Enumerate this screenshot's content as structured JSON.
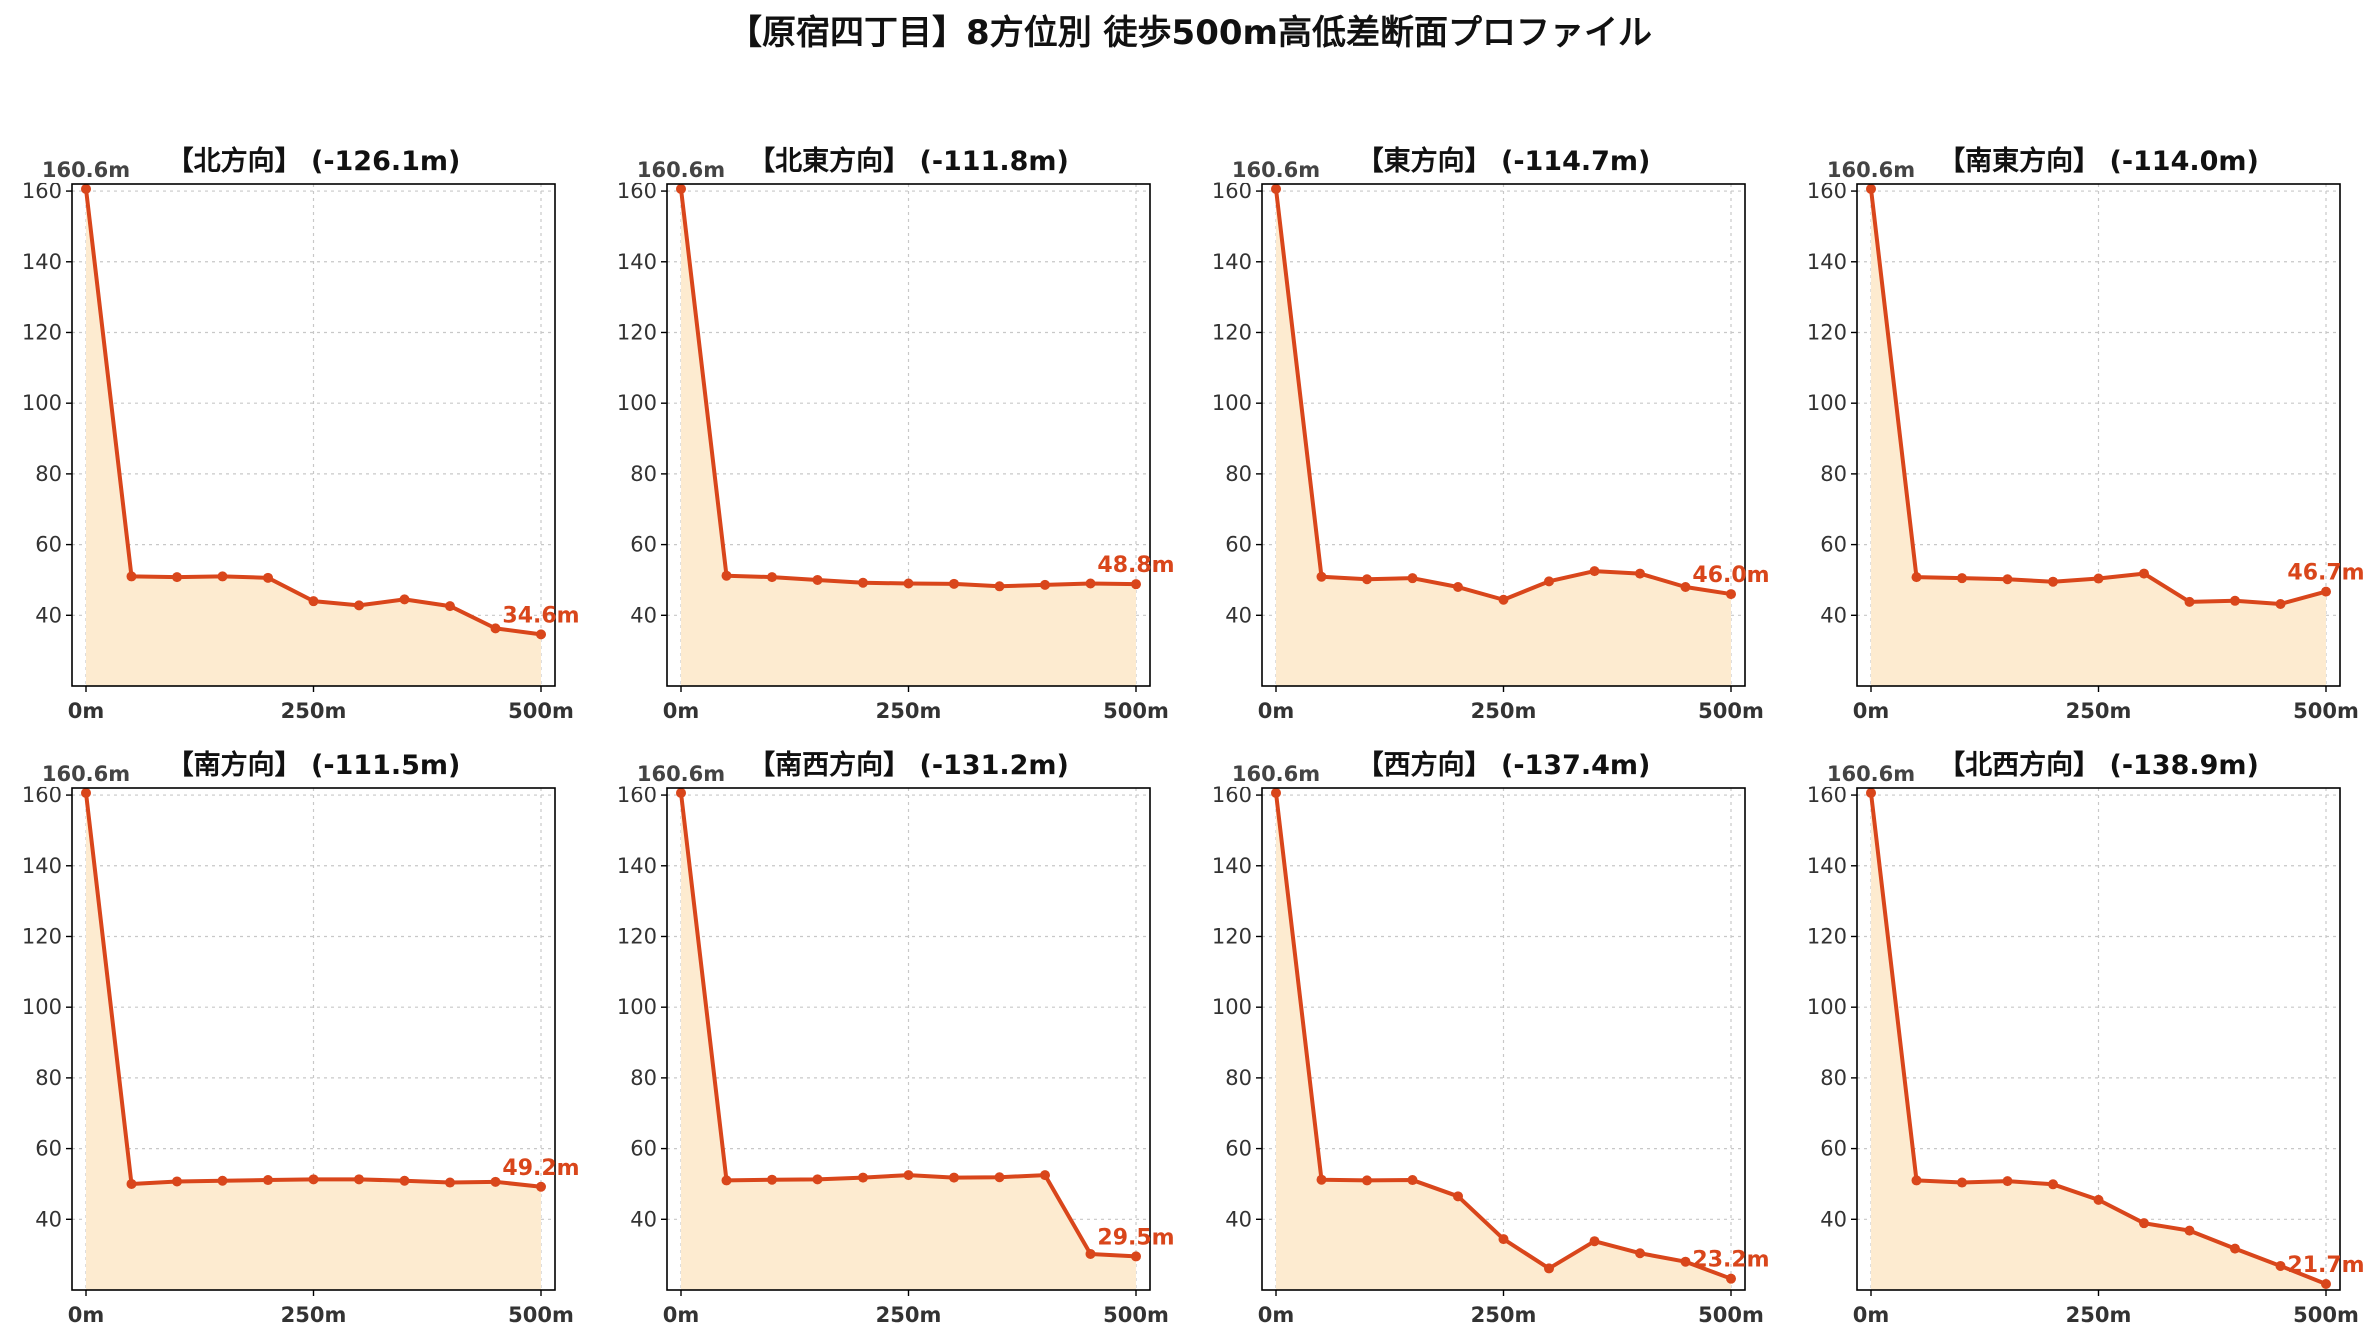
{
  "figure": {
    "title": "【原宿四丁目】8方位別 徒歩500m高低差断面プロファイル"
  },
  "colors": {
    "line": "#d9461b",
    "fill": "#fdebd0",
    "grid": "#c8c8c8",
    "end_label": "#d9461b"
  },
  "chart_data": [
    {
      "type": "area",
      "title": "【北方向】 (-126.1m)",
      "x_ticks": [
        "0m",
        "250m",
        "500m"
      ],
      "y_ticks": [
        40,
        60,
        80,
        100,
        120,
        140,
        160
      ],
      "xlim": [
        0,
        500
      ],
      "ylim": [
        20,
        162
      ],
      "grid": true,
      "x": [
        0,
        50,
        100,
        150,
        200,
        250,
        300,
        350,
        400,
        450,
        500
      ],
      "values": [
        160.6,
        51.0,
        50.8,
        51.0,
        50.6,
        44.0,
        42.8,
        44.5,
        42.6,
        36.3,
        34.6
      ],
      "start_label": "160.6m",
      "end_label": "34.6m"
    },
    {
      "type": "area",
      "title": "【北東方向】 (-111.8m)",
      "x_ticks": [
        "0m",
        "250m",
        "500m"
      ],
      "y_ticks": [
        40,
        60,
        80,
        100,
        120,
        140,
        160
      ],
      "xlim": [
        0,
        500
      ],
      "ylim": [
        20,
        162
      ],
      "grid": true,
      "x": [
        0,
        50,
        100,
        150,
        200,
        250,
        300,
        350,
        400,
        450,
        500
      ],
      "values": [
        160.6,
        51.2,
        50.8,
        50.0,
        49.2,
        49.0,
        48.9,
        48.2,
        48.6,
        49.0,
        48.8
      ],
      "start_label": "160.6m",
      "end_label": "48.8m"
    },
    {
      "type": "area",
      "title": "【東方向】 (-114.7m)",
      "x_ticks": [
        "0m",
        "250m",
        "500m"
      ],
      "y_ticks": [
        40,
        60,
        80,
        100,
        120,
        140,
        160
      ],
      "xlim": [
        0,
        500
      ],
      "ylim": [
        20,
        162
      ],
      "grid": true,
      "x": [
        0,
        50,
        100,
        150,
        200,
        250,
        300,
        350,
        400,
        450,
        500
      ],
      "values": [
        160.6,
        50.9,
        50.2,
        50.5,
        48.0,
        44.4,
        49.6,
        52.5,
        51.8,
        48.0,
        46.0
      ],
      "start_label": "160.6m",
      "end_label": "46.0m"
    },
    {
      "type": "area",
      "title": "【南東方向】 (-114.0m)",
      "x_ticks": [
        "0m",
        "250m",
        "500m"
      ],
      "y_ticks": [
        40,
        60,
        80,
        100,
        120,
        140,
        160
      ],
      "xlim": [
        0,
        500
      ],
      "ylim": [
        20,
        162
      ],
      "grid": true,
      "x": [
        0,
        50,
        100,
        150,
        200,
        250,
        300,
        350,
        400,
        450,
        500
      ],
      "values": [
        160.6,
        50.8,
        50.5,
        50.2,
        49.5,
        50.4,
        51.8,
        43.8,
        44.1,
        43.2,
        46.7
      ],
      "start_label": "160.6m",
      "end_label": "46.7m"
    },
    {
      "type": "area",
      "title": "【南方向】 (-111.5m)",
      "x_ticks": [
        "0m",
        "250m",
        "500m"
      ],
      "y_ticks": [
        40,
        60,
        80,
        100,
        120,
        140,
        160
      ],
      "xlim": [
        0,
        500
      ],
      "ylim": [
        20,
        162
      ],
      "grid": true,
      "x": [
        0,
        50,
        100,
        150,
        200,
        250,
        300,
        350,
        400,
        450,
        500
      ],
      "values": [
        160.6,
        50.0,
        50.7,
        50.9,
        51.1,
        51.3,
        51.3,
        50.9,
        50.4,
        50.6,
        49.2
      ],
      "start_label": "160.6m",
      "end_label": "49.2m"
    },
    {
      "type": "area",
      "title": "【南西方向】 (-131.2m)",
      "x_ticks": [
        "0m",
        "250m",
        "500m"
      ],
      "y_ticks": [
        40,
        60,
        80,
        100,
        120,
        140,
        160
      ],
      "xlim": [
        0,
        500
      ],
      "ylim": [
        20,
        162
      ],
      "grid": true,
      "x": [
        0,
        50,
        100,
        150,
        200,
        250,
        300,
        350,
        400,
        450,
        500
      ],
      "values": [
        160.6,
        51.0,
        51.2,
        51.3,
        51.8,
        52.5,
        51.8,
        51.9,
        52.5,
        30.2,
        29.5
      ],
      "start_label": "160.6m",
      "end_label": "29.5m"
    },
    {
      "type": "area",
      "title": "【西方向】 (-137.4m)",
      "x_ticks": [
        "0m",
        "250m",
        "500m"
      ],
      "y_ticks": [
        40,
        60,
        80,
        100,
        120,
        140,
        160
      ],
      "xlim": [
        0,
        500
      ],
      "ylim": [
        20,
        162
      ],
      "grid": true,
      "x": [
        0,
        50,
        100,
        150,
        200,
        250,
        300,
        350,
        400,
        450,
        500
      ],
      "values": [
        160.6,
        51.2,
        51.0,
        51.1,
        46.5,
        34.4,
        26.1,
        33.8,
        30.4,
        28.0,
        23.2
      ],
      "start_label": "160.6m",
      "end_label": "23.2m"
    },
    {
      "type": "area",
      "title": "【北西方向】 (-138.9m)",
      "x_ticks": [
        "0m",
        "250m",
        "500m"
      ],
      "y_ticks": [
        40,
        60,
        80,
        100,
        120,
        140,
        160
      ],
      "xlim": [
        0,
        500
      ],
      "ylim": [
        20,
        162
      ],
      "grid": true,
      "x": [
        0,
        50,
        100,
        150,
        200,
        250,
        300,
        350,
        400,
        450,
        500
      ],
      "values": [
        160.6,
        51.0,
        50.4,
        50.8,
        49.9,
        45.5,
        38.9,
        36.8,
        31.7,
        26.8,
        21.7
      ],
      "start_label": "160.6m",
      "end_label": "21.7m"
    }
  ]
}
